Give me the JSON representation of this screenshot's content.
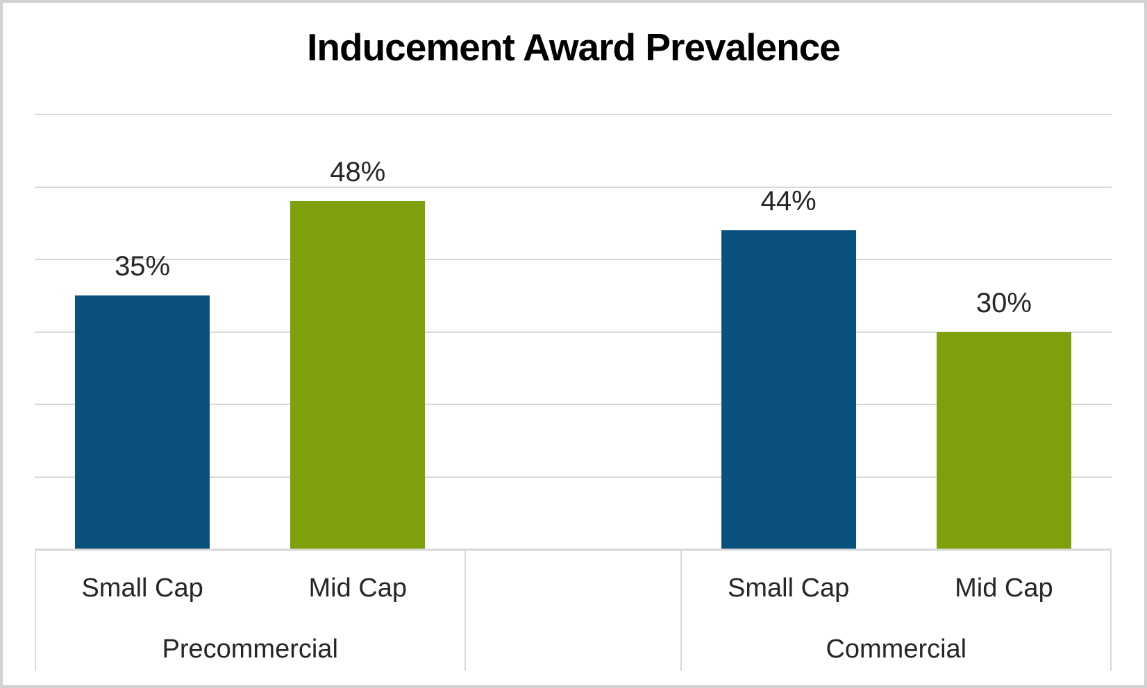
{
  "chart_data": {
    "type": "bar",
    "title": "Inducement Award Prevalence",
    "value_format": "percent",
    "ylim": [
      0,
      62.4
    ],
    "gridlines_percent": [
      10,
      20,
      30,
      40,
      50,
      60
    ],
    "grid": true,
    "y_axis_tick_labels_visible": false,
    "legend": "none",
    "xlabel": "",
    "ylabel": "",
    "groups": [
      {
        "label": "Precommercial",
        "bars": [
          {
            "category": "Small Cap",
            "series": "Small Cap",
            "value": 35,
            "label": "35%"
          },
          {
            "category": "Mid Cap",
            "series": "Mid Cap",
            "value": 48,
            "label": "48%"
          }
        ]
      },
      {
        "label": "",
        "bars": [
          {
            "category": "",
            "series": "",
            "value": null,
            "label": ""
          }
        ]
      },
      {
        "label": "Commercial",
        "bars": [
          {
            "category": "Small Cap",
            "series": "Small Cap",
            "value": 44,
            "label": "44%"
          },
          {
            "category": "Mid Cap",
            "series": "Mid Cap",
            "value": 30,
            "label": "30%"
          }
        ]
      }
    ],
    "series_colors": {
      "Small Cap": "#0B517E",
      "Mid Cap": "#7EA00A"
    }
  },
  "colors": {
    "bar_blue": "#0B517E",
    "bar_green": "#7EA00A",
    "gridline": "#D9D9D9",
    "axis_line": "#D9D9D9",
    "label_text": "#262626",
    "title_text": "#000000",
    "canvas_border": "#D2D2D2",
    "background": "#FFFFFF"
  }
}
